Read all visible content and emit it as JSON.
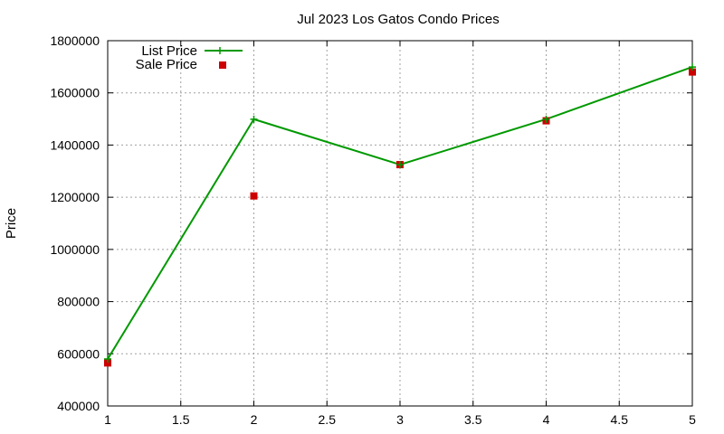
{
  "chart_data": {
    "type": "line",
    "title": "Jul 2023 Los Gatos Condo Prices",
    "xlabel": "",
    "ylabel": "Price",
    "xlim": [
      1,
      5
    ],
    "ylim": [
      400000,
      1800000
    ],
    "xticks": [
      1,
      1.5,
      2,
      2.5,
      3,
      3.5,
      4,
      4.5,
      5
    ],
    "xtick_labels": [
      "1",
      "1.5",
      "2",
      "2.5",
      "3",
      "3.5",
      "4",
      "4.5",
      "5"
    ],
    "yticks": [
      400000,
      600000,
      800000,
      1000000,
      1200000,
      1400000,
      1600000,
      1800000
    ],
    "ytick_labels": [
      "400000",
      "600000",
      "800000",
      "1000000",
      "1200000",
      "1400000",
      "1600000",
      "1800000"
    ],
    "grid": true,
    "legend_position": "top-left",
    "series": [
      {
        "name": "List Price",
        "style": "line-with-plus-markers",
        "color": "#009900",
        "x": [
          1,
          2,
          3,
          4,
          5
        ],
        "y": [
          580000,
          1499000,
          1325000,
          1499000,
          1699000
        ]
      },
      {
        "name": "Sale Price",
        "style": "square-points",
        "color": "#cc0000",
        "x": [
          1,
          2,
          3,
          4,
          5
        ],
        "y": [
          565000,
          1205000,
          1325000,
          1493000,
          1680000
        ]
      }
    ]
  }
}
